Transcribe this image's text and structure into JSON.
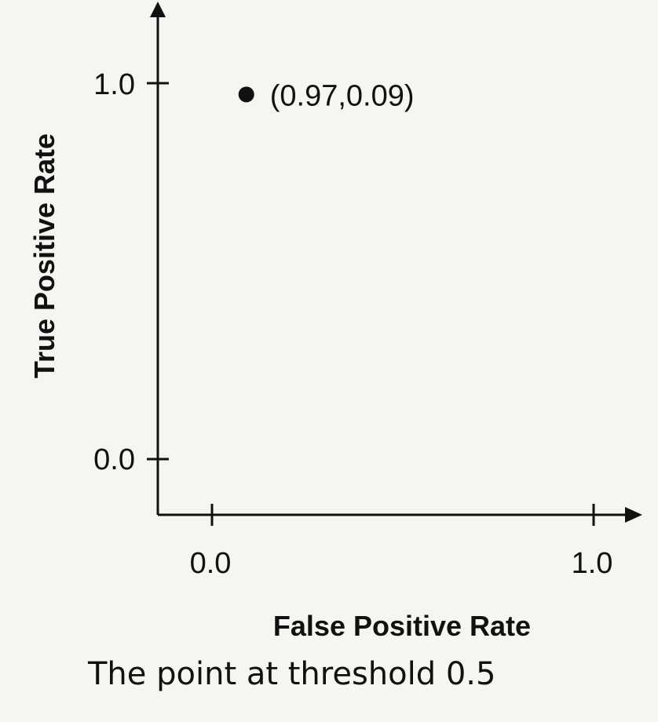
{
  "chart_data": {
    "type": "scatter",
    "xlabel": "False Positive Rate",
    "ylabel": "True Positive Rate",
    "xlim": [
      0.0,
      1.0
    ],
    "ylim": [
      0.0,
      1.0
    ],
    "x_ticks": [
      "0.0",
      "1.0"
    ],
    "y_ticks": [
      "0.0",
      "1.0"
    ],
    "grid": false,
    "points": [
      {
        "x": 0.09,
        "y": 0.97,
        "label": "(0.97,0.09)"
      }
    ]
  },
  "caption": "The point at threshold 0.5"
}
